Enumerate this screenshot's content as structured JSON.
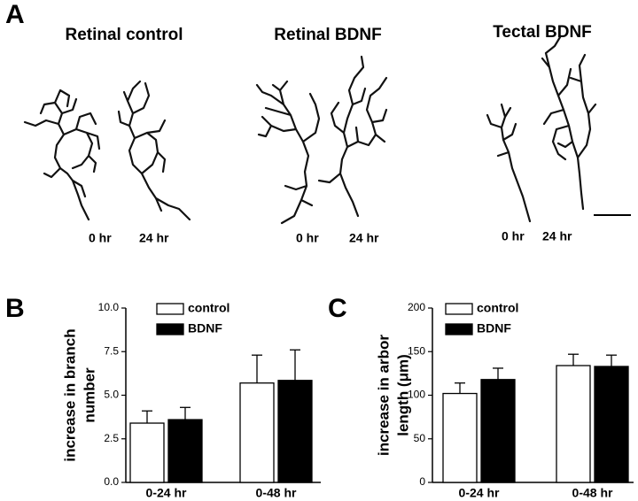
{
  "panel_labels": [
    "A",
    "B",
    "C"
  ],
  "panel_a": {
    "titles": [
      "Retinal control",
      "Retinal BDNF",
      "Tectal BDNF"
    ],
    "time_labels": [
      "0 hr",
      "24 hr",
      "0 hr",
      "24 hr",
      "0 hr",
      "24 hr"
    ]
  },
  "chart_data": [
    {
      "type": "bar",
      "ylabel": [
        "increase in branch",
        "number"
      ],
      "categories": [
        "0-24 hr",
        "0-48 hr"
      ],
      "series": [
        {
          "name": "control",
          "color": "#ffffff",
          "values": [
            3.4,
            5.7
          ],
          "errors": [
            0.7,
            1.6
          ]
        },
        {
          "name": "BDNF",
          "color": "#000000",
          "values": [
            3.6,
            5.85
          ],
          "errors": [
            0.7,
            1.75
          ]
        }
      ],
      "ylim": [
        0,
        10
      ],
      "yticks": [
        {
          "value": 0,
          "label": "0.0"
        },
        2.5,
        {
          "value": 5,
          "label": "5.0"
        },
        7.5,
        {
          "value": 10,
          "label": "10.0"
        }
      ],
      "grid": false
    },
    {
      "type": "bar",
      "ylabel": [
        "increase in arbor",
        "length (μm)"
      ],
      "categories": [
        "0-24 hr",
        "0-48 hr"
      ],
      "series": [
        {
          "name": "control",
          "color": "#ffffff",
          "values": [
            102,
            134
          ],
          "errors": [
            12,
            13
          ]
        },
        {
          "name": "BDNF",
          "color": "#000000",
          "values": [
            118,
            133
          ],
          "errors": [
            13,
            13
          ]
        }
      ],
      "ylim": [
        0,
        200
      ],
      "yticks": [
        0,
        50,
        100,
        150,
        200
      ],
      "grid": false
    }
  ]
}
